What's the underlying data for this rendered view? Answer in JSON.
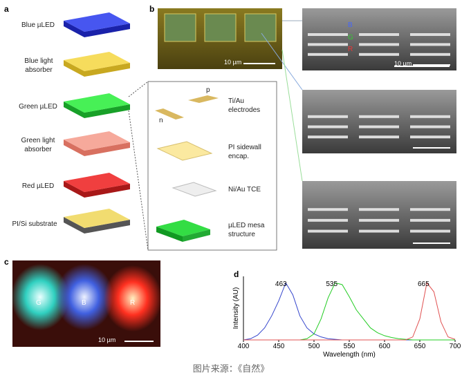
{
  "panels": {
    "a": {
      "label": "a",
      "layers": [
        "Blue µLED",
        "Blue light absorber",
        "Green µLED",
        "Green light absorber",
        "Red µLED",
        "PI/Si substrate"
      ]
    },
    "b": {
      "label": "b",
      "micrograph_scale": "10 µm",
      "sem_labels": [
        "B",
        "G",
        "R"
      ],
      "sem_scale": "10 µm",
      "electrode_labels": [
        "p",
        "n"
      ],
      "inset": [
        "Ti/Au electrodes",
        "PI sidewall encap.",
        "Ni/Au TCE",
        "µLED mesa structure"
      ]
    },
    "c": {
      "label": "c",
      "pixels": [
        "G",
        "B",
        "R"
      ],
      "scale": "10 µm"
    },
    "d": {
      "label": "d"
    }
  },
  "chart_data": {
    "type": "line",
    "xlabel": "Wavelength (nm)",
    "ylabel": "Intensity (AU)",
    "xlim": [
      400,
      700
    ],
    "ylim": [
      0,
      1
    ],
    "xticks": [
      400,
      450,
      500,
      550,
      600,
      650,
      700
    ],
    "x": [
      400,
      410,
      420,
      430,
      440,
      450,
      460,
      470,
      480,
      490,
      500,
      510,
      520,
      530,
      540,
      550,
      560,
      570,
      580,
      590,
      600,
      610,
      620,
      630,
      640,
      650,
      660,
      670,
      680,
      690,
      700
    ],
    "series": [
      {
        "name": "Blue",
        "color": "#3344cc",
        "values": [
          0,
          0.02,
          0.08,
          0.2,
          0.4,
          0.65,
          0.95,
          0.75,
          0.4,
          0.2,
          0.1,
          0.05,
          0.02,
          0.01,
          0,
          0,
          0,
          0,
          0,
          0,
          0,
          0,
          0,
          0,
          0,
          0,
          0,
          0,
          0,
          0,
          0
        ]
      },
      {
        "name": "Green",
        "color": "#22cc22",
        "values": [
          0,
          0,
          0,
          0,
          0,
          0,
          0,
          0,
          0,
          0.02,
          0.1,
          0.35,
          0.7,
          0.95,
          0.92,
          0.72,
          0.5,
          0.35,
          0.2,
          0.12,
          0.07,
          0.04,
          0.02,
          0.01,
          0,
          0,
          0,
          0,
          0,
          0,
          0
        ]
      },
      {
        "name": "Red",
        "color": "#e05050",
        "values": [
          0,
          0,
          0,
          0,
          0,
          0,
          0,
          0,
          0,
          0,
          0,
          0,
          0,
          0,
          0,
          0,
          0,
          0,
          0,
          0,
          0,
          0,
          0,
          0,
          0.05,
          0.35,
          0.95,
          0.8,
          0.3,
          0.05,
          0.01
        ]
      }
    ],
    "annotations": [
      {
        "label": "463",
        "x": 463
      },
      {
        "label": "535",
        "x": 535
      },
      {
        "label": "665",
        "x": 665
      }
    ]
  },
  "caption": "图片来源：《自然》"
}
